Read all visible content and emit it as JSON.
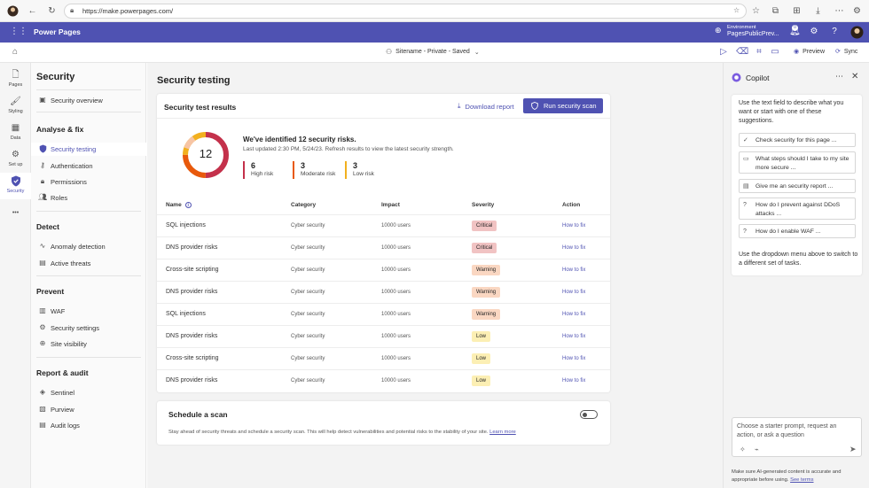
{
  "browser": {
    "url": "https://make.powerpages.com/"
  },
  "app": {
    "title": "Power Pages",
    "env_label": "Environment",
    "env_name": "PagesPublicPrev...",
    "notif_count": "0"
  },
  "cmdbar": {
    "sitename": "Sitename - Private - Saved",
    "preview": "Preview",
    "sync": "Sync"
  },
  "rail": {
    "pages": "Pages",
    "styling": "Styling",
    "data": "Data",
    "setup": "Set up",
    "security": "Security",
    "more": "•••"
  },
  "sidebar": {
    "title": "Security",
    "overview": "Security overview",
    "groups": {
      "analyse": "Analyse & fix",
      "detect": "Detect",
      "prevent": "Prevent",
      "report": "Report & audit"
    },
    "items": {
      "testing": "Security testing",
      "authentication": "Authentication",
      "permissions": "Permissions",
      "roles": "Roles",
      "anomaly": "Anomaly detection",
      "threats": "Active threats",
      "waf": "WAF",
      "settings": "Security settings",
      "visibility": "Site visibility",
      "sentinel": "Sentinel",
      "purview": "Purview",
      "audit": "Audit logs"
    }
  },
  "main": {
    "page_title": "Security testing",
    "results": {
      "title": "Security test results",
      "download": "Download report",
      "run": "Run security scan",
      "total": "12",
      "summary_title": "We've identified 12 security risks.",
      "summary_sub": "Last updated 2:30 PM, 5/24/23. Refresh results to view the latest security strength.",
      "risks": [
        {
          "count": "6",
          "label": "High risk",
          "color": "#c4314b"
        },
        {
          "count": "3",
          "label": "Moderate risk",
          "color": "#e8590c"
        },
        {
          "count": "3",
          "label": "Low risk",
          "color": "#f2b01e"
        }
      ],
      "columns": {
        "name": "Name",
        "category": "Category",
        "impact": "Impact",
        "severity": "Severity",
        "action": "Action"
      },
      "rows": [
        {
          "name": "SQL injections",
          "category": "Cyber security",
          "impact": "10000 users",
          "severity": "Critical",
          "action": "How to fix"
        },
        {
          "name": "DNS provider risks",
          "category": "Cyber security",
          "impact": "10000 users",
          "severity": "Critical",
          "action": "How to fix"
        },
        {
          "name": "Cross-site scripting",
          "category": "Cyber security",
          "impact": "10000 users",
          "severity": "Warning",
          "action": "How to fix"
        },
        {
          "name": "DNS provider risks",
          "category": "Cyber security",
          "impact": "10000 users",
          "severity": "Warning",
          "action": "How to fix"
        },
        {
          "name": "SQL injections",
          "category": "Cyber security",
          "impact": "10000 users",
          "severity": "Warning",
          "action": "How to fix"
        },
        {
          "name": "DNS provider risks",
          "category": "Cyber security",
          "impact": "10000 users",
          "severity": "Low",
          "action": "How to fix"
        },
        {
          "name": "Cross-site scripting",
          "category": "Cyber security",
          "impact": "10000 users",
          "severity": "Low",
          "action": "How to fix"
        },
        {
          "name": "DNS provider risks",
          "category": "Cyber security",
          "impact": "10000 users",
          "severity": "Low",
          "action": "How to fix"
        }
      ]
    },
    "schedule": {
      "title": "Schedule a scan",
      "desc": "Stay ahead of security threats and schedule a security scan. This will help detect vulnerabilities and potential risks to the stability of your site.",
      "link": "Learn more"
    }
  },
  "copilot": {
    "title": "Copilot",
    "intro": "Use the text field to describe what you want or start with one of these suggestions.",
    "suggestions": [
      "Check security for this page ...",
      "What steps should I take to my site more secure ...",
      "Give me an security report ...",
      "How do I prevent against DDoS attacks ...",
      "How do I enable WAF ..."
    ],
    "footer": "Use the dropdown menu above to switch to a different set of tasks.",
    "prompt_placeholder": "Choose a starter prompt, request an action, or ask a question",
    "disclaimer": "Make sure AI-generated content is accurate and appropriate before using.",
    "disclaimer_link": "See terms"
  },
  "colors": {
    "accent": "#4f52b2",
    "critical_bg": "#f1c3c3",
    "warning_bg": "#fad7c2",
    "low_bg": "#fcefb4"
  }
}
